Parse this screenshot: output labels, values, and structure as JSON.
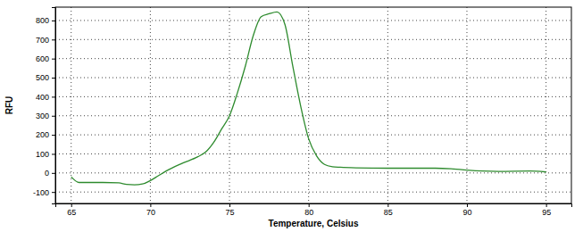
{
  "chart_data": {
    "type": "line",
    "x_label": "Temperature, Celsius",
    "y_label": "RFU",
    "x": [
      65,
      65.5,
      66,
      67,
      68,
      68.5,
      69,
      69.5,
      70,
      70.5,
      71,
      72,
      73,
      73.5,
      74,
      74.5,
      75,
      75.5,
      76,
      76.5,
      77,
      77.5,
      78,
      78.5,
      79,
      79.5,
      80,
      80.5,
      81,
      81.5,
      82,
      83,
      85,
      88,
      89,
      90,
      91,
      92,
      94,
      95
    ],
    "values": [
      -20,
      -50,
      -50,
      -50,
      -52,
      -60,
      -62,
      -58,
      -40,
      -15,
      10,
      50,
      85,
      110,
      160,
      230,
      300,
      420,
      560,
      720,
      820,
      835,
      845,
      780,
      560,
      350,
      180,
      90,
      45,
      33,
      30,
      27,
      25,
      25,
      22,
      15,
      10,
      8,
      10,
      5
    ],
    "color": "#2e8b2e",
    "xlim": [
      64,
      96.6
    ],
    "ylim": [
      -160,
      870
    ],
    "xticks": [
      65,
      70,
      75,
      80,
      85,
      90,
      95
    ],
    "yticks": [
      -100,
      0,
      100,
      200,
      300,
      400,
      500,
      600,
      700,
      800
    ],
    "grid": true
  }
}
